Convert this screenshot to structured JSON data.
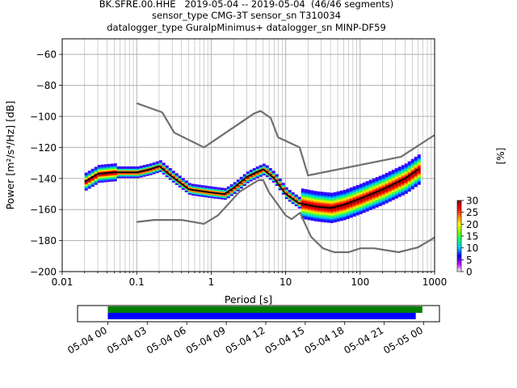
{
  "header": {
    "title_line1": "BK.SFRE.00.HHE   2019-05-04 -- 2019-05-04  (46/46 segments)",
    "title_line2": "sensor_type CMG-3T sensor_sn T310034",
    "title_line3": "datalogger_type GuralpMinimus+ datalogger_sn MINP-DF59"
  },
  "colors": {
    "noise_model": "#707070",
    "mean_line": "#000000",
    "grid": "#b0b0b0",
    "coverage_green": "#008000",
    "coverage_blue": "#0000ff"
  },
  "chart_data": [
    {
      "type": "heatmap",
      "xlabel": "Period [s]",
      "ylabel": "Power [m²/s⁴/Hz] [dB]",
      "x_scale": "log",
      "xlim": [
        0.01,
        1000
      ],
      "ylim": [
        -200,
        -50
      ],
      "x_ticks": [
        0.01,
        0.1,
        1,
        10,
        100,
        1000
      ],
      "x_tick_labels": [
        "0.01",
        "0.1",
        "1",
        "10",
        "100",
        "1000"
      ],
      "y_ticks": [
        -200,
        -180,
        -160,
        -140,
        -120,
        -100,
        -80,
        -60
      ],
      "y_tick_labels": [
        "−200",
        "−180",
        "−160",
        "−140",
        "−120",
        "−100",
        "−80",
        "−60"
      ],
      "grid": true,
      "colorbar": {
        "label": "[%]",
        "range": [
          0,
          30
        ],
        "ticks": [
          0,
          5,
          10,
          15,
          20,
          25,
          30
        ],
        "tick_labels": [
          "0",
          "5",
          "10",
          "15",
          "20",
          "25",
          "30"
        ],
        "colormap": [
          "#ffffff",
          "#c000ff",
          "#0000ff",
          "#00c8ff",
          "#00ff80",
          "#80ff00",
          "#ffff00",
          "#ff8000",
          "#ff0000",
          "#800000"
        ]
      },
      "series": [
        {
          "role": "high-noise-model",
          "x": [
            0.1,
            0.22,
            0.32,
            0.8,
            3.8,
            4.6,
            6.3,
            7.9,
            15.4,
            20,
            354.8,
            1000
          ],
          "y": [
            -91.5,
            -97.4,
            -110.5,
            -120,
            -98,
            -96.5,
            -101,
            -113.5,
            -120,
            -138,
            -126,
            -112
          ]
        },
        {
          "role": "low-noise-model",
          "x": [
            0.1,
            0.17,
            0.4,
            0.8,
            1.24,
            2.4,
            4.3,
            5,
            6,
            10,
            12,
            15.6,
            21.9,
            31.6,
            45,
            70,
            101,
            154,
            328,
            600,
            1000
          ],
          "y": [
            -168,
            -166.7,
            -166.7,
            -169.2,
            -163.7,
            -148.6,
            -141.1,
            -141.1,
            -149,
            -163.8,
            -166.2,
            -162.1,
            -177.5,
            -185,
            -187.5,
            -187.5,
            -185,
            -185,
            -187.5,
            -184.4,
            -178
          ]
        },
        {
          "role": "mean-psd",
          "x": [
            0.02,
            0.03,
            0.05,
            0.1,
            0.15,
            0.2,
            0.3,
            0.5,
            1,
            1.5,
            2,
            3,
            4,
            5,
            7,
            10,
            15,
            25,
            40,
            60,
            100,
            200,
            400,
            600
          ],
          "y": [
            -142,
            -137,
            -136,
            -136,
            -134,
            -132,
            -139,
            -147,
            -149,
            -150,
            -146,
            -139,
            -136,
            -134,
            -140,
            -150,
            -156,
            -158,
            -159,
            -157,
            -153,
            -147,
            -140,
            -134
          ]
        }
      ]
    },
    {
      "type": "timeline",
      "x_tick_labels": [
        "05-04 00",
        "05-04 03",
        "05-04 06",
        "05-04 09",
        "05-04 12",
        "05-04 15",
        "05-04 18",
        "05-04 21",
        "05-05 00"
      ],
      "x_ticks_hours": [
        0,
        3,
        6,
        9,
        12,
        15,
        18,
        21,
        24
      ],
      "xlim_hours": [
        -2.3,
        25.2
      ],
      "bars": [
        {
          "row": "top",
          "color": "#008000",
          "start_hour": 0,
          "end_hour": 23.9
        },
        {
          "row": "bottom",
          "color": "#0000ff",
          "start_hour": 0,
          "end_hour": 23.4
        }
      ]
    }
  ]
}
